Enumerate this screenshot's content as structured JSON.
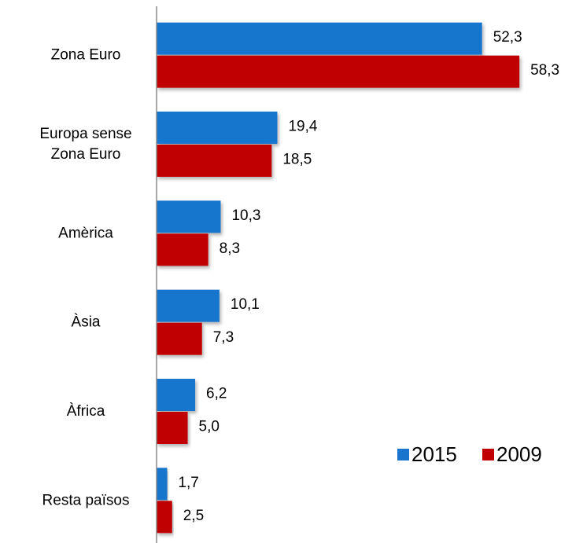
{
  "chart_data": {
    "type": "bar",
    "orientation": "horizontal",
    "categories": [
      "Zona Euro",
      "Europa sense\nZona Euro",
      "Amèrica",
      "Àsia",
      "Àfrica",
      "Resta països"
    ],
    "series": [
      {
        "name": "2015",
        "color": "#1874cd",
        "values": [
          52.3,
          19.4,
          10.3,
          10.1,
          6.2,
          1.7
        ],
        "value_labels": [
          "52,3",
          "19,4",
          "10,3",
          "10,1",
          "6,2",
          "1,7"
        ]
      },
      {
        "name": "2009",
        "color": "#c00000",
        "values": [
          58.3,
          18.5,
          8.3,
          7.3,
          5.0,
          2.5
        ],
        "value_labels": [
          "58,3",
          "18,5",
          "8,3",
          "7,3",
          "5,0",
          "2,5"
        ]
      }
    ],
    "legend": "lower right"
  }
}
